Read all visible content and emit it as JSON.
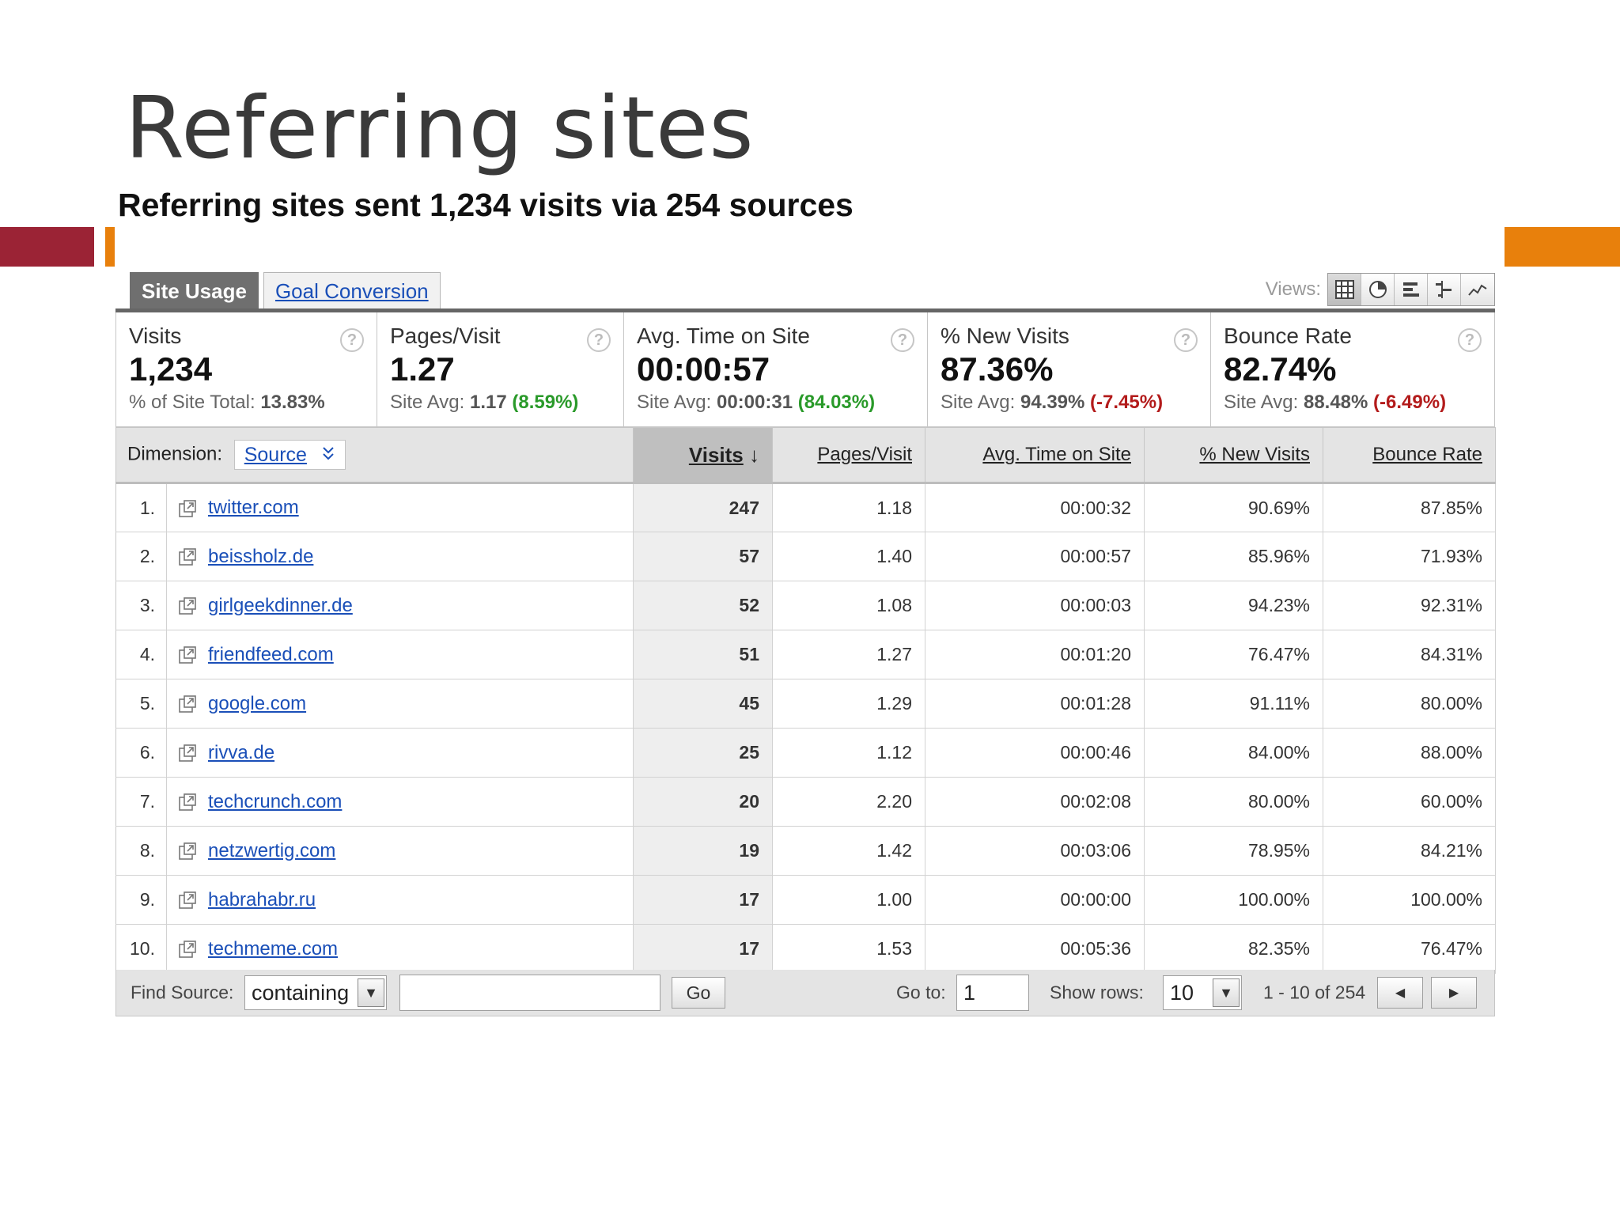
{
  "slide": {
    "title": "Referring sites",
    "subtitle": "Referring sites sent 1,234 visits via 254 sources"
  },
  "tabs": [
    {
      "label": "Site Usage",
      "active": true
    },
    {
      "label": "Goal Conversion",
      "active": false
    }
  ],
  "views": {
    "label": "Views:",
    "icons": [
      "table-view-icon",
      "pie-view-icon",
      "performance-view-icon",
      "comparison-view-icon",
      "pivot-trend-view-icon"
    ]
  },
  "scorecards": [
    {
      "label": "Visits",
      "value": "1,234",
      "sub_prefix": "% of Site Total: ",
      "sub_value": "13.83%",
      "change": "",
      "change_type": ""
    },
    {
      "label": "Pages/Visit",
      "value": "1.27",
      "sub_prefix": "Site Avg: ",
      "sub_value": "1.17",
      "change": "(8.59%)",
      "change_type": "pos"
    },
    {
      "label": "Avg. Time on Site",
      "value": "00:00:57",
      "sub_prefix": "Site Avg: ",
      "sub_value": "00:00:31",
      "change": "(84.03%)",
      "change_type": "pos"
    },
    {
      "label": "% New Visits",
      "value": "87.36%",
      "sub_prefix": "Site Avg: ",
      "sub_value": "94.39%",
      "change": "(-7.45%)",
      "change_type": "neg"
    },
    {
      "label": "Bounce Rate",
      "value": "82.74%",
      "sub_prefix": "Site Avg: ",
      "sub_value": "88.48%",
      "change": "(-6.49%)",
      "change_type": "neg"
    }
  ],
  "help_glyph": "?",
  "table": {
    "dimension_label": "Dimension:",
    "dimension_value": "Source",
    "columns": [
      "Visits",
      "Pages/Visit",
      "Avg. Time on Site",
      "% New Visits",
      "Bounce Rate"
    ],
    "sort_arrow": "↓",
    "rows": [
      {
        "rank": "1.",
        "source": "twitter.com",
        "visits": "247",
        "pages_visit": "1.18",
        "avg_time": "00:00:32",
        "new_visits": "90.69%",
        "bounce_rate": "87.85%"
      },
      {
        "rank": "2.",
        "source": "beissholz.de",
        "visits": "57",
        "pages_visit": "1.40",
        "avg_time": "00:00:57",
        "new_visits": "85.96%",
        "bounce_rate": "71.93%"
      },
      {
        "rank": "3.",
        "source": "girlgeekdinner.de",
        "visits": "52",
        "pages_visit": "1.08",
        "avg_time": "00:00:03",
        "new_visits": "94.23%",
        "bounce_rate": "92.31%"
      },
      {
        "rank": "4.",
        "source": "friendfeed.com",
        "visits": "51",
        "pages_visit": "1.27",
        "avg_time": "00:01:20",
        "new_visits": "76.47%",
        "bounce_rate": "84.31%"
      },
      {
        "rank": "5.",
        "source": "google.com",
        "visits": "45",
        "pages_visit": "1.29",
        "avg_time": "00:01:28",
        "new_visits": "91.11%",
        "bounce_rate": "80.00%"
      },
      {
        "rank": "6.",
        "source": "rivva.de",
        "visits": "25",
        "pages_visit": "1.12",
        "avg_time": "00:00:46",
        "new_visits": "84.00%",
        "bounce_rate": "88.00%"
      },
      {
        "rank": "7.",
        "source": "techcrunch.com",
        "visits": "20",
        "pages_visit": "2.20",
        "avg_time": "00:02:08",
        "new_visits": "80.00%",
        "bounce_rate": "60.00%"
      },
      {
        "rank": "8.",
        "source": "netzwertig.com",
        "visits": "19",
        "pages_visit": "1.42",
        "avg_time": "00:03:06",
        "new_visits": "78.95%",
        "bounce_rate": "84.21%"
      },
      {
        "rank": "9.",
        "source": "habrahabr.ru",
        "visits": "17",
        "pages_visit": "1.00",
        "avg_time": "00:00:00",
        "new_visits": "100.00%",
        "bounce_rate": "100.00%"
      },
      {
        "rank": "10.",
        "source": "techmeme.com",
        "visits": "17",
        "pages_visit": "1.53",
        "avg_time": "00:05:36",
        "new_visits": "82.35%",
        "bounce_rate": "76.47%"
      }
    ]
  },
  "footer": {
    "find_label": "Find Source:",
    "match_mode": "containing",
    "find_value": "",
    "go_label": "Go",
    "goto_label": "Go to:",
    "goto_value": "1",
    "rows_label": "Show rows:",
    "rows_value": "10",
    "range_text": "1 - 10 of 254",
    "prev_glyph": "◀",
    "next_glyph": "▶"
  },
  "colors": {
    "accent_red": "#9b2335",
    "accent_orange": "#e8800c",
    "link_blue": "#1a4fb8",
    "positive_green": "#2a9a2a",
    "negative_red": "#b31b1b"
  }
}
